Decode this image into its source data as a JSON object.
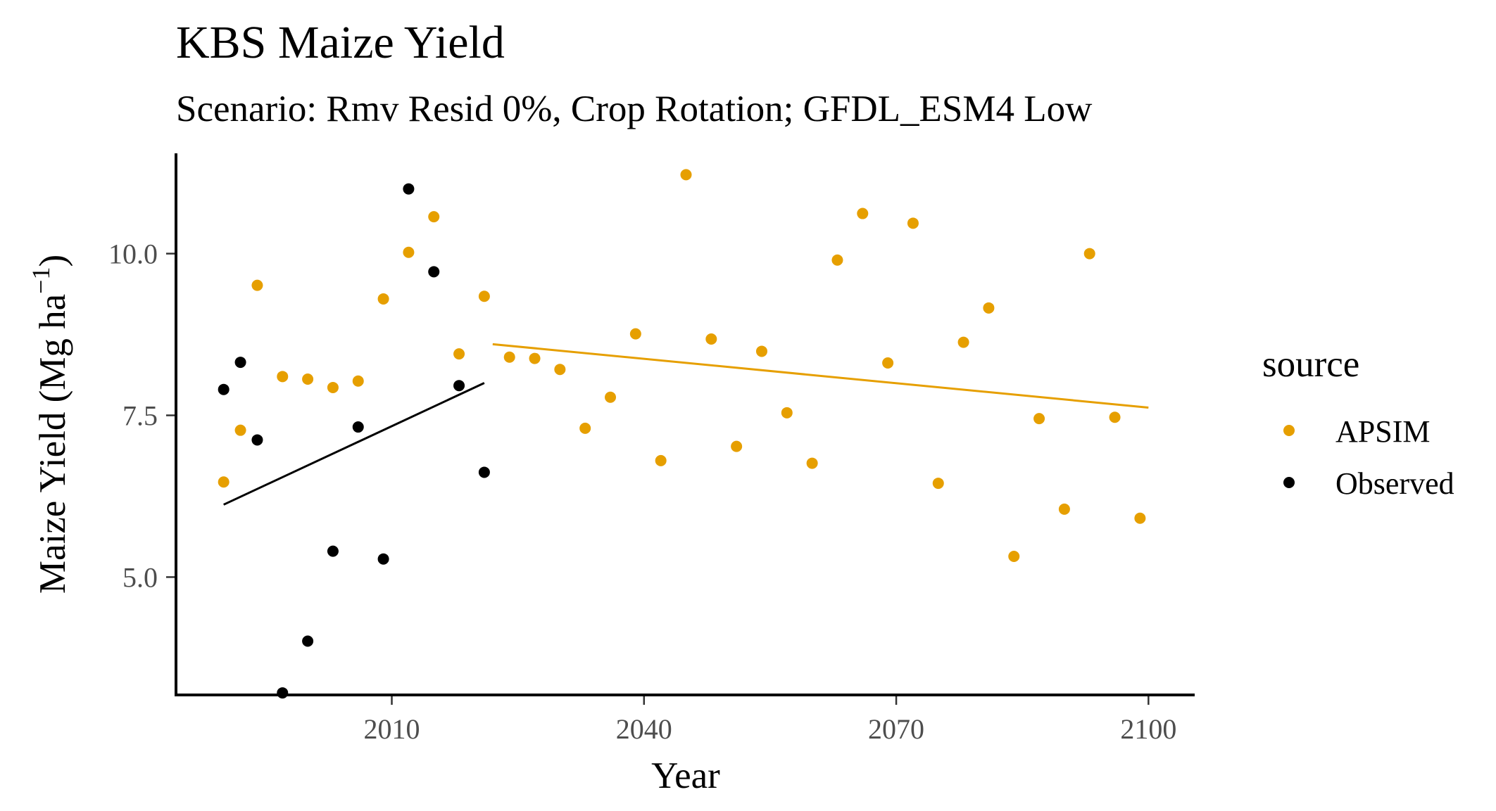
{
  "chart_data": {
    "type": "scatter",
    "title": "KBS Maize Yield",
    "subtitle": "Scenario: Rmv Resid 0%, Crop Rotation; GFDL_ESM4 Low",
    "xlabel": "Year",
    "ylabel_main": "Maize Yield (Mg ha",
    "ylabel_exp": "−1",
    "ylabel_close": ")",
    "xlim": [
      1984.5,
      2105.5
    ],
    "ylim": [
      3.2,
      11.55
    ],
    "x_ticks": [
      {
        "value": 2010,
        "label": "2010"
      },
      {
        "value": 2040,
        "label": "2040"
      },
      {
        "value": 2070,
        "label": "2070"
      },
      {
        "value": 2100,
        "label": "2100"
      }
    ],
    "y_ticks": [
      {
        "value": 5.0,
        "label": "5.0"
      },
      {
        "value": 7.5,
        "label": "7.5"
      },
      {
        "value": 10.0,
        "label": "10.0"
      }
    ],
    "grid": false,
    "legend": {
      "title": "source",
      "position": "right"
    },
    "series": [
      {
        "name": "APSIM",
        "color": "#E69F00",
        "points": [
          [
            1990,
            6.47
          ],
          [
            1992,
            7.27
          ],
          [
            1994,
            9.51
          ],
          [
            1997,
            8.1
          ],
          [
            2000,
            8.06
          ],
          [
            2003,
            7.93
          ],
          [
            2006,
            8.03
          ],
          [
            2009,
            9.3
          ],
          [
            2012,
            10.02
          ],
          [
            2015,
            10.57
          ],
          [
            2018,
            8.45
          ],
          [
            2021,
            9.34
          ],
          [
            2024,
            8.4
          ],
          [
            2027,
            8.38
          ],
          [
            2030,
            8.21
          ],
          [
            2033,
            7.3
          ],
          [
            2036,
            7.78
          ],
          [
            2039,
            8.76
          ],
          [
            2042,
            6.8
          ],
          [
            2045,
            11.22
          ],
          [
            2048,
            8.68
          ],
          [
            2051,
            7.02
          ],
          [
            2054,
            8.49
          ],
          [
            2057,
            7.54
          ],
          [
            2060,
            6.76
          ],
          [
            2063,
            9.9
          ],
          [
            2066,
            10.62
          ],
          [
            2069,
            8.31
          ],
          [
            2072,
            10.47
          ],
          [
            2075,
            6.45
          ],
          [
            2078,
            8.63
          ],
          [
            2081,
            9.16
          ],
          [
            2084,
            5.32
          ],
          [
            2087,
            7.45
          ],
          [
            2090,
            6.05
          ],
          [
            2093,
            10.0
          ],
          [
            2096,
            7.47
          ],
          [
            2099,
            5.91
          ]
        ],
        "trend": [
          [
            2022,
            8.6
          ],
          [
            2100,
            7.62
          ]
        ]
      },
      {
        "name": "Observed",
        "color": "#000000",
        "points": [
          [
            1990,
            7.9
          ],
          [
            1992,
            8.32
          ],
          [
            1994,
            7.12
          ],
          [
            1997,
            3.21
          ],
          [
            2000,
            4.01
          ],
          [
            2003,
            5.4
          ],
          [
            2006,
            7.32
          ],
          [
            2009,
            5.28
          ],
          [
            2012,
            11.0
          ],
          [
            2015,
            9.72
          ],
          [
            2018,
            7.96
          ],
          [
            2021,
            6.62
          ]
        ],
        "trend": [
          [
            1990,
            6.12
          ],
          [
            2021,
            8.0
          ]
        ]
      }
    ]
  }
}
